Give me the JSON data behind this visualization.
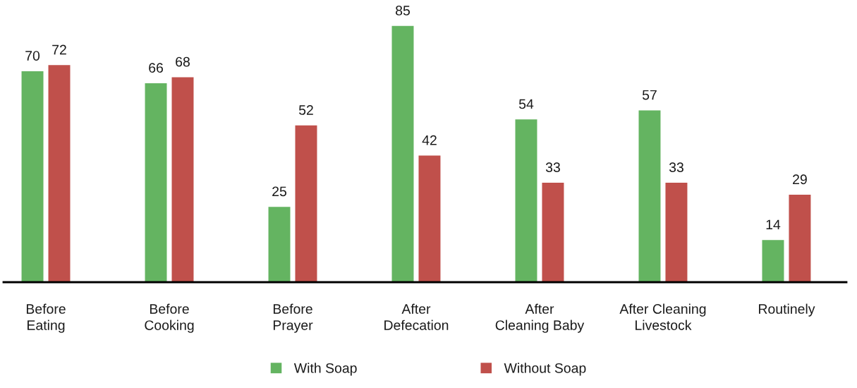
{
  "chart_data": {
    "type": "bar",
    "categories": [
      "Before\nEating",
      "Before\nCooking",
      "Before\nPrayer",
      "After\nDefecation",
      "After\nCleaning Baby",
      "After Cleaning\nLivestock",
      "Routinely"
    ],
    "series": [
      {
        "name": "With Soap",
        "color": "#64b461",
        "values": [
          70,
          66,
          25,
          85,
          54,
          57,
          14
        ]
      },
      {
        "name": "Without Soap",
        "color": "#c0504b",
        "values": [
          72,
          68,
          52,
          42,
          33,
          33,
          29
        ]
      }
    ],
    "data_labels": true,
    "legend": "bottom",
    "tick_labels": "x"
  }
}
